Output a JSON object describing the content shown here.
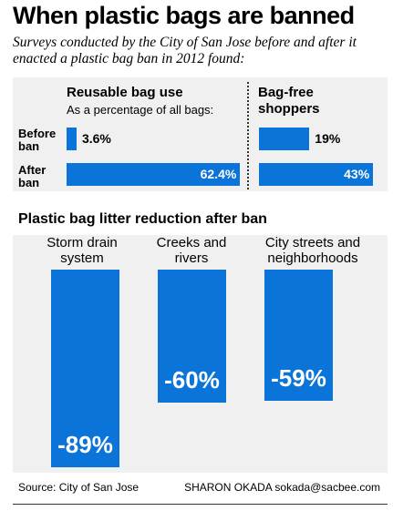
{
  "title": "When plastic bags are banned",
  "subtitle": "Surveys conducted by the City of San Jose before and after it enacted a plastic bag ban in 2012 found:",
  "colors": {
    "bar": "#0a74d8",
    "panel_bg": "#f0f0f0"
  },
  "chart_data": [
    {
      "type": "bar",
      "orientation": "horizontal",
      "title": "Reusable bag use",
      "subtitle": "As a percentage of all bags:",
      "categories": [
        "Before ban",
        "After ban"
      ],
      "values": [
        3.6,
        62.4
      ],
      "labels": [
        "3.6%",
        "62.4%"
      ],
      "xlim": [
        0,
        100
      ]
    },
    {
      "type": "bar",
      "orientation": "horizontal",
      "title": "Bag-free shoppers",
      "categories": [
        "Before ban",
        "After ban"
      ],
      "values": [
        19,
        43
      ],
      "labels": [
        "19%",
        "43%"
      ],
      "xlim": [
        0,
        45
      ]
    },
    {
      "type": "bar",
      "orientation": "vertical",
      "title": "Plastic bag litter reduction after ban",
      "categories": [
        "Storm drain system",
        "Creeks and rivers",
        "City streets and neighborhoods"
      ],
      "values": [
        -89,
        -60,
        -59
      ],
      "labels": [
        "-89%",
        "-60%",
        "-59%"
      ],
      "ylim": [
        -100,
        0
      ]
    }
  ],
  "rows": {
    "before": {
      "line1": "Before",
      "line2": "ban"
    },
    "after": {
      "line1": "After",
      "line2": "ban"
    }
  },
  "cat_lines": [
    [
      "Storm drain",
      "system"
    ],
    [
      "Creeks and",
      "rivers"
    ],
    [
      "City streets and",
      "neighborhoods"
    ]
  ],
  "footer": {
    "source": "Source: City of San Jose",
    "credit": "SHARON OKADA sokada@sacbee.com"
  }
}
